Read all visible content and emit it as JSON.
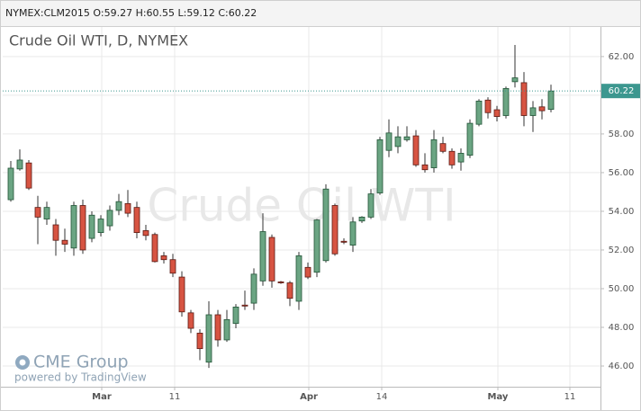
{
  "header": "NYMEX:CLM2015 O:59.27 H:60.55 L:59.12 C:60.22",
  "chart_data": {
    "type": "candlestick",
    "title": "Crude Oil WTI, D, NYMEX",
    "watermark": "Crude Oil WTI",
    "x": [
      0,
      1,
      2,
      3,
      4,
      5,
      6,
      7,
      8,
      9,
      10,
      11,
      12,
      13,
      14,
      15,
      16,
      17,
      18,
      19,
      20,
      21,
      22,
      23,
      24,
      25,
      26,
      27,
      28,
      29,
      30,
      31,
      32,
      33,
      34,
      35,
      36,
      37,
      38,
      39,
      40,
      41,
      42,
      43,
      44,
      45,
      46,
      47,
      48,
      49,
      50,
      51,
      52,
      53,
      54,
      55,
      56,
      57,
      58,
      59,
      60
    ],
    "open": [
      54.6,
      56.19,
      56.5,
      54.2,
      53.6,
      53.3,
      52.5,
      52.1,
      54.3,
      52.6,
      52.9,
      53.25,
      54.05,
      54.4,
      54.2,
      53.0,
      52.8,
      51.7,
      51.5,
      50.6,
      48.75,
      47.7,
      46.2,
      48.65,
      47.35,
      48.2,
      49.15,
      49.25,
      50.4,
      52.65,
      50.35,
      50.3,
      49.35,
      51.1,
      50.85,
      51.45,
      54.3,
      52.45,
      52.25,
      53.5,
      53.7,
      54.95,
      57.15,
      57.35,
      57.7,
      57.9,
      56.4,
      56.25,
      57.5,
      57.1,
      56.55,
      56.9,
      58.5,
      59.75,
      59.25,
      58.95,
      60.7,
      60.65,
      58.95,
      59.4,
      59.27
    ],
    "high": [
      56.6,
      57.2,
      56.65,
      54.8,
      54.5,
      53.6,
      53.1,
      54.5,
      54.6,
      54.0,
      53.8,
      54.3,
      54.9,
      55.1,
      54.5,
      53.3,
      52.9,
      51.9,
      51.8,
      50.9,
      48.9,
      47.9,
      49.35,
      48.9,
      48.9,
      49.2,
      49.9,
      51.05,
      53.9,
      52.8,
      50.4,
      50.4,
      51.9,
      51.35,
      53.6,
      55.4,
      54.4,
      52.6,
      53.7,
      53.75,
      55.15,
      57.85,
      58.75,
      58.4,
      58.4,
      58.2,
      57.0,
      58.2,
      57.85,
      57.25,
      57.25,
      58.75,
      59.8,
      59.9,
      59.45,
      60.45,
      62.6,
      61.2,
      59.7,
      59.8,
      60.55
    ],
    "low": [
      54.5,
      56.1,
      55.1,
      52.3,
      53.3,
      51.7,
      51.9,
      51.7,
      51.8,
      52.4,
      52.7,
      53.0,
      53.8,
      53.7,
      52.6,
      52.5,
      51.35,
      51.3,
      50.6,
      48.55,
      47.7,
      46.3,
      45.9,
      47.0,
      47.25,
      47.95,
      48.9,
      48.9,
      50.15,
      50.05,
      50.25,
      49.1,
      48.9,
      50.5,
      50.6,
      51.35,
      51.7,
      52.3,
      51.9,
      53.4,
      53.6,
      54.85,
      56.8,
      57.0,
      57.6,
      56.3,
      56.0,
      56.0,
      57.0,
      56.2,
      56.1,
      56.75,
      58.4,
      58.8,
      58.65,
      58.8,
      60.4,
      58.4,
      58.1,
      58.75,
      59.12
    ],
    "close": [
      56.23,
      56.65,
      55.2,
      53.7,
      54.2,
      52.5,
      52.3,
      54.3,
      52.0,
      53.8,
      53.6,
      54.05,
      54.5,
      53.9,
      52.9,
      52.75,
      51.4,
      51.5,
      50.8,
      48.8,
      47.95,
      46.9,
      48.65,
      47.35,
      48.4,
      49.05,
      49.1,
      50.75,
      52.95,
      50.4,
      50.3,
      49.5,
      51.7,
      50.6,
      53.55,
      55.15,
      51.8,
      52.4,
      53.45,
      53.7,
      54.9,
      57.7,
      58.05,
      57.85,
      57.85,
      56.4,
      56.15,
      57.7,
      57.1,
      56.4,
      57.0,
      58.55,
      59.7,
      59.1,
      58.9,
      60.35,
      60.9,
      58.95,
      59.35,
      59.2,
      60.22
    ],
    "up_color": "#6ba583",
    "down_color": "#d75442",
    "xlim": [
      -0.9,
      65.5
    ],
    "xticks": [
      {
        "value": 10.1,
        "label": "Mar"
      },
      {
        "value": 18.2,
        "label": "11"
      },
      {
        "value": 33.1,
        "label": "Apr"
      },
      {
        "value": 41.2,
        "label": "14"
      },
      {
        "value": 54.1,
        "label": "May"
      },
      {
        "value": 62.1,
        "label": "11"
      }
    ],
    "ylim": [
      44.93,
      63.53
    ],
    "yticks": [
      {
        "value": 46,
        "label": "46.00"
      },
      {
        "value": 48,
        "label": "48.00"
      },
      {
        "value": 50,
        "label": "50.00"
      },
      {
        "value": 52,
        "label": "52.00"
      },
      {
        "value": 54,
        "label": "54.00"
      },
      {
        "value": 56,
        "label": "56.00"
      },
      {
        "value": 58,
        "label": "58.00"
      },
      {
        "value": 60,
        "label": "60.00"
      },
      {
        "value": 62,
        "label": "62.00"
      }
    ],
    "grid": true,
    "last_price_color": "#3c978f"
  },
  "logo": {
    "name": "CME Group",
    "caption": "powered by TradingView"
  }
}
